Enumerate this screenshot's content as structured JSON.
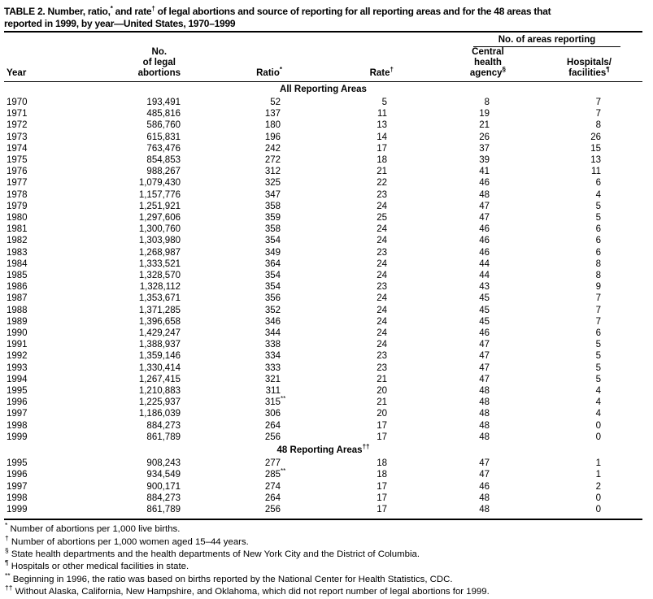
{
  "title": "TABLE 2. Number, ratio,^{*} and rate^{†} of legal abortions and source of reporting for all reporting areas and for the 48 areas that\nreported in 1999, by year—United States, 1970–1999",
  "header": {
    "spanner": "No. of areas reporting",
    "columns": [
      {
        "label": "Year"
      },
      {
        "label": "No.\nof legal\nabortions"
      },
      {
        "label": "Ratio^{*}"
      },
      {
        "label": "Rate^{†}"
      },
      {
        "label": "Central\nhealth\nagency^{§}"
      },
      {
        "label": "Hospitals/\nfacilities^{¶}"
      }
    ]
  },
  "sections": [
    {
      "label": "All Reporting Areas",
      "rows": [
        [
          "1970",
          "193,491",
          "52",
          "5",
          "8",
          "7"
        ],
        [
          "1971",
          "485,816",
          "137",
          "11",
          "19",
          "7"
        ],
        [
          "1972",
          "586,760",
          "180",
          "13",
          "21",
          "8"
        ],
        [
          "1973",
          "615,831",
          "196",
          "14",
          "26",
          "26"
        ],
        [
          "1974",
          "763,476",
          "242",
          "17",
          "37",
          "15"
        ],
        [
          "1975",
          "854,853",
          "272",
          "18",
          "39",
          "13"
        ],
        [
          "1976",
          "988,267",
          "312",
          "21",
          "41",
          "11"
        ],
        [
          "1977",
          "1,079,430",
          "325",
          "22",
          "46",
          "6"
        ],
        [
          "1978",
          "1,157,776",
          "347",
          "23",
          "48",
          "4"
        ],
        [
          "1979",
          "1,251,921",
          "358",
          "24",
          "47",
          "5"
        ],
        [
          "1980",
          "1,297,606",
          "359",
          "25",
          "47",
          "5"
        ],
        [
          "1981",
          "1,300,760",
          "358",
          "24",
          "46",
          "6"
        ],
        [
          "1982",
          "1,303,980",
          "354",
          "24",
          "46",
          "6"
        ],
        [
          "1983",
          "1,268,987",
          "349",
          "23",
          "46",
          "6"
        ],
        [
          "1984",
          "1,333,521",
          "364",
          "24",
          "44",
          "8"
        ],
        [
          "1985",
          "1,328,570",
          "354",
          "24",
          "44",
          "8"
        ],
        [
          "1986",
          "1,328,112",
          "354",
          "23",
          "43",
          "9"
        ],
        [
          "1987",
          "1,353,671",
          "356",
          "24",
          "45",
          "7"
        ],
        [
          "1988",
          "1,371,285",
          "352",
          "24",
          "45",
          "7"
        ],
        [
          "1989",
          "1,396,658",
          "346",
          "24",
          "45",
          "7"
        ],
        [
          "1990",
          "1,429,247",
          "344",
          "24",
          "46",
          "6"
        ],
        [
          "1991",
          "1,388,937",
          "338",
          "24",
          "47",
          "5"
        ],
        [
          "1992",
          "1,359,146",
          "334",
          "23",
          "47",
          "5"
        ],
        [
          "1993",
          "1,330,414",
          "333",
          "23",
          "47",
          "5"
        ],
        [
          "1994",
          "1,267,415",
          "321",
          "21",
          "47",
          "5"
        ],
        [
          "1995",
          "1,210,883",
          "311",
          "20",
          "48",
          "4"
        ],
        [
          "1996",
          "1,225,937",
          "315^{**}",
          "21",
          "48",
          "4"
        ],
        [
          "1997",
          "1,186,039",
          "306",
          "20",
          "48",
          "4"
        ],
        [
          "1998",
          "884,273",
          "264",
          "17",
          "48",
          "0"
        ],
        [
          "1999",
          "861,789",
          "256",
          "17",
          "48",
          "0"
        ]
      ]
    },
    {
      "label": "48 Reporting Areas^{††}",
      "rows": [
        [
          "1995",
          "908,243",
          "277",
          "18",
          "47",
          "1"
        ],
        [
          "1996",
          "934,549",
          "285^{**}",
          "18",
          "47",
          "1"
        ],
        [
          "1997",
          "900,171",
          "274",
          "17",
          "46",
          "2"
        ],
        [
          "1998",
          "884,273",
          "264",
          "17",
          "48",
          "0"
        ],
        [
          "1999",
          "861,789",
          "256",
          "17",
          "48",
          "0"
        ]
      ]
    }
  ],
  "footnotes": [
    {
      "marker": "*",
      "text": "Number of abortions per 1,000 live births."
    },
    {
      "marker": "†",
      "text": "Number of abortions per 1,000 women aged 15–44 years."
    },
    {
      "marker": "§",
      "text": "State health departments and the health departments of New York City and the District of Columbia."
    },
    {
      "marker": "¶",
      "text": "Hospitals or other medical facilities in state."
    },
    {
      "marker": "**",
      "text": "Beginning in 1996, the ratio was based on births reported by the National Center for Health Statistics, CDC."
    },
    {
      "marker": "††",
      "text": "Without Alaska, California, New Hampshire, and Oklahoma, which did not report number of legal abortions for 1999."
    }
  ]
}
